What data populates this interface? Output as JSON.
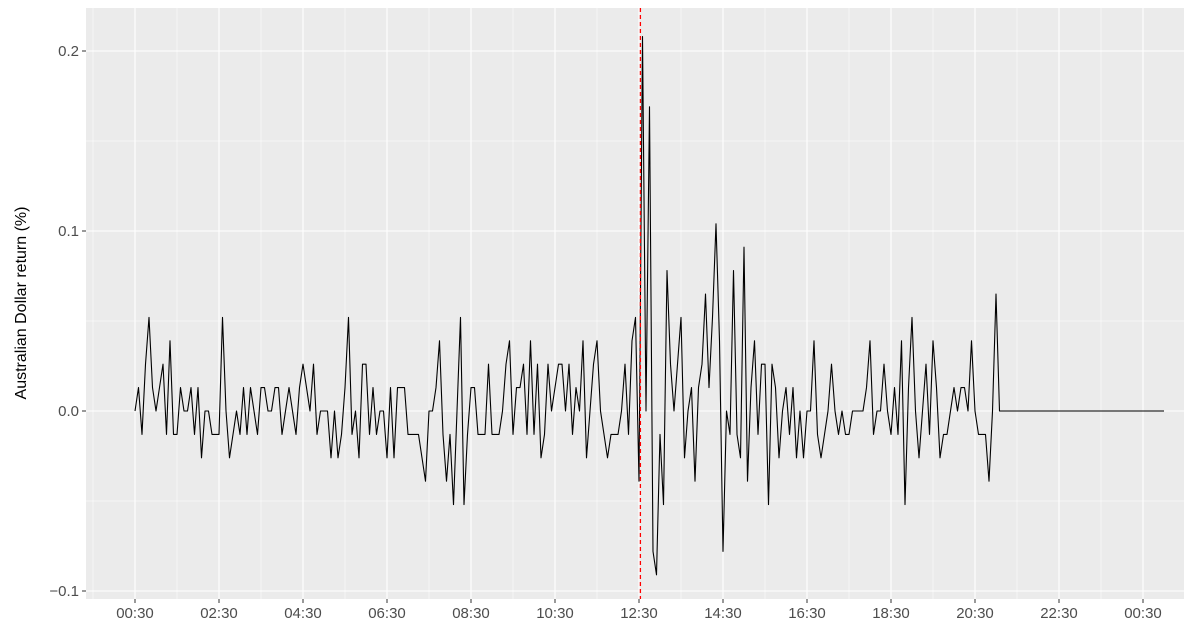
{
  "chart_data": {
    "type": "line",
    "title": "",
    "xlabel": "",
    "ylabel": "Australian Dollar return (%)",
    "x_ticks": [
      "00:30",
      "02:30",
      "04:30",
      "06:30",
      "08:30",
      "10:30",
      "12:30",
      "14:30",
      "16:30",
      "18:30",
      "20:30",
      "22:30",
      "00:30"
    ],
    "y_ticks": [
      -0.1,
      0.0,
      0.1,
      0.2
    ],
    "y_tick_labels": [
      "−0.1",
      "0.0",
      "0.1",
      "0.2"
    ],
    "xlim": [
      "00:30",
      "00:30 (+1 day)"
    ],
    "ylim": [
      -0.1,
      0.2
    ],
    "grid": true,
    "background": "#ebebeb",
    "grid_color": "#ffffff",
    "line_color": "#000000",
    "event_line": {
      "x": "12:32",
      "color": "#ff0000",
      "style": "dashed"
    },
    "series": [
      {
        "step_minutes": 5,
        "start": "00:30",
        "values": [
          0.0,
          0.013,
          -0.013,
          0.026,
          0.052,
          0.013,
          0.0,
          0.013,
          0.026,
          -0.013,
          0.039,
          -0.013,
          -0.013,
          0.013,
          0.0,
          0.0,
          0.013,
          -0.013,
          0.013,
          -0.026,
          0.0,
          0.0,
          -0.013,
          -0.013,
          -0.013,
          0.052,
          0.0,
          -0.026,
          -0.013,
          0.0,
          -0.013,
          0.013,
          -0.013,
          0.013,
          0.0,
          -0.013,
          0.013,
          0.013,
          0.0,
          0.0,
          0.013,
          0.013,
          -0.013,
          0.0,
          0.013,
          0.0,
          -0.013,
          0.013,
          0.026,
          0.013,
          0.0,
          0.026,
          -0.013,
          0.0,
          0.0,
          0.0,
          -0.026,
          0.0,
          -0.026,
          -0.013,
          0.013,
          0.052,
          -0.013,
          0.0,
          -0.026,
          0.026,
          0.026,
          -0.013,
          0.013,
          -0.013,
          0.0,
          0.0,
          -0.026,
          0.013,
          -0.026,
          0.013,
          0.013,
          0.013,
          -0.013,
          -0.013,
          -0.013,
          -0.013,
          -0.026,
          -0.039,
          0.0,
          0.0,
          0.013,
          0.039,
          -0.013,
          -0.039,
          -0.013,
          -0.052,
          0.0,
          0.052,
          -0.052,
          -0.013,
          0.013,
          0.013,
          -0.013,
          -0.013,
          -0.013,
          0.026,
          -0.013,
          -0.013,
          -0.013,
          0.0,
          0.026,
          0.039,
          -0.013,
          0.013,
          0.013,
          0.026,
          -0.013,
          0.039,
          -0.013,
          0.026,
          -0.026,
          -0.013,
          0.026,
          0.0,
          0.013,
          0.026,
          0.026,
          0.0,
          0.026,
          -0.013,
          0.013,
          0.0,
          0.039,
          -0.026,
          0.0,
          0.026,
          0.039,
          0.0,
          -0.013,
          -0.026,
          -0.013,
          -0.013,
          -0.013,
          0.0,
          0.026,
          -0.013,
          0.039,
          0.052,
          -0.039,
          0.208,
          0.0,
          0.169,
          -0.078,
          -0.091,
          -0.013,
          -0.052,
          0.078,
          0.026,
          0.0,
          0.026,
          0.052,
          -0.026,
          0.0,
          0.013,
          -0.039,
          0.013,
          0.026,
          0.065,
          0.013,
          0.052,
          0.104,
          0.039,
          -0.078,
          0.0,
          -0.013,
          0.078,
          -0.013,
          -0.026,
          0.091,
          -0.039,
          0.013,
          0.039,
          -0.013,
          0.026,
          0.026,
          -0.052,
          0.026,
          0.013,
          -0.026,
          0.0,
          0.013,
          -0.013,
          0.013,
          -0.026,
          0.0,
          -0.026,
          0.0,
          0.0,
          0.039,
          -0.013,
          -0.026,
          -0.013,
          0.0,
          0.026,
          0.0,
          -0.013,
          0.0,
          -0.013,
          -0.013,
          0.0,
          0.0,
          0.0,
          0.0,
          0.013,
          0.039,
          -0.013,
          0.0,
          0.0,
          0.026,
          0.0,
          -0.013,
          0.013,
          -0.013,
          0.039,
          -0.052,
          0.013,
          0.052,
          0.0,
          -0.026,
          0.0,
          0.026,
          -0.013,
          0.039,
          0.013,
          -0.026,
          -0.013,
          -0.013,
          0.0,
          0.013,
          0.0,
          0.013,
          0.013,
          0.0,
          0.039,
          0.0,
          -0.013,
          -0.013,
          -0.013,
          -0.039,
          0.0,
          0.065,
          0.0,
          0.0,
          0.0,
          0.0,
          0.0,
          0.0,
          0.0,
          0.0,
          0.0,
          0.0,
          0.0,
          0.0,
          0.0,
          0.0,
          0.0,
          0.0,
          0.0,
          0.0,
          0.0,
          0.0,
          0.0,
          0.0,
          0.0,
          0.0,
          0.0,
          0.0,
          0.0,
          0.0,
          0.0,
          0.0,
          0.0,
          0.0,
          0.0,
          0.0,
          0.0,
          0.0,
          0.0,
          0.0,
          0.0,
          0.0,
          0.0,
          0.0,
          0.0,
          0.0,
          0.0,
          0.0,
          0.0,
          0.0
        ]
      }
    ]
  }
}
